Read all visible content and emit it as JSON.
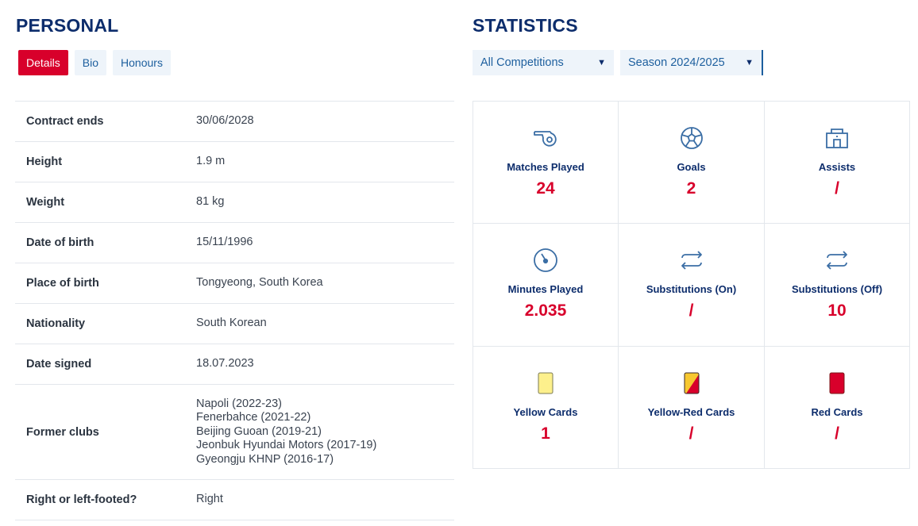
{
  "personal": {
    "title": "PERSONAL",
    "tabs": [
      {
        "label": "Details",
        "active": true
      },
      {
        "label": "Bio",
        "active": false
      },
      {
        "label": "Honours",
        "active": false
      }
    ],
    "rows": [
      {
        "label": "Contract ends",
        "value": "30/06/2028"
      },
      {
        "label": "Height",
        "value": "1.9 m"
      },
      {
        "label": "Weight",
        "value": "81 kg"
      },
      {
        "label": "Date of birth",
        "value": "15/11/1996"
      },
      {
        "label": "Place of birth",
        "value": "Tongyeong, South Korea"
      },
      {
        "label": "Nationality",
        "value": "South Korean"
      },
      {
        "label": "Date signed",
        "value": "18.07.2023"
      }
    ],
    "former_clubs": {
      "label": "Former clubs",
      "clubs": [
        "Napoli (2022-23)",
        "Fenerbahce (2021-22)",
        "Beijing Guoan (2019-21)",
        "Jeonbuk Hyundai Motors (2017-19)",
        "Gyeongju KHNP (2016-17)"
      ]
    },
    "footed": {
      "label": "Right or left-footed?",
      "value": "Right"
    }
  },
  "statistics": {
    "title": "STATISTICS",
    "competition_select": "All Competitions",
    "season_select": "Season 2024/2025",
    "caret_icon": "▼",
    "accent_color": "#d8002b",
    "navy_color": "#0d2d6c",
    "items": [
      {
        "icon": "whistle-icon",
        "label": "Matches Played",
        "value": "24"
      },
      {
        "icon": "ball-icon",
        "label": "Goals",
        "value": "2"
      },
      {
        "icon": "goal-assist-icon",
        "label": "Assists",
        "value": "/"
      },
      {
        "icon": "stopwatch-icon",
        "label": "Minutes Played",
        "value": "2.035"
      },
      {
        "icon": "substitution-icon",
        "label": "Substitutions (On)",
        "value": "/"
      },
      {
        "icon": "substitution-icon",
        "label": "Substitutions (Off)",
        "value": "10"
      },
      {
        "icon": "yellow-card-icon",
        "label": "Yellow Cards",
        "value": "1"
      },
      {
        "icon": "yellow-red-card-icon",
        "label": "Yellow-Red Cards",
        "value": "/"
      },
      {
        "icon": "red-card-icon",
        "label": "Red Cards",
        "value": "/"
      }
    ]
  }
}
